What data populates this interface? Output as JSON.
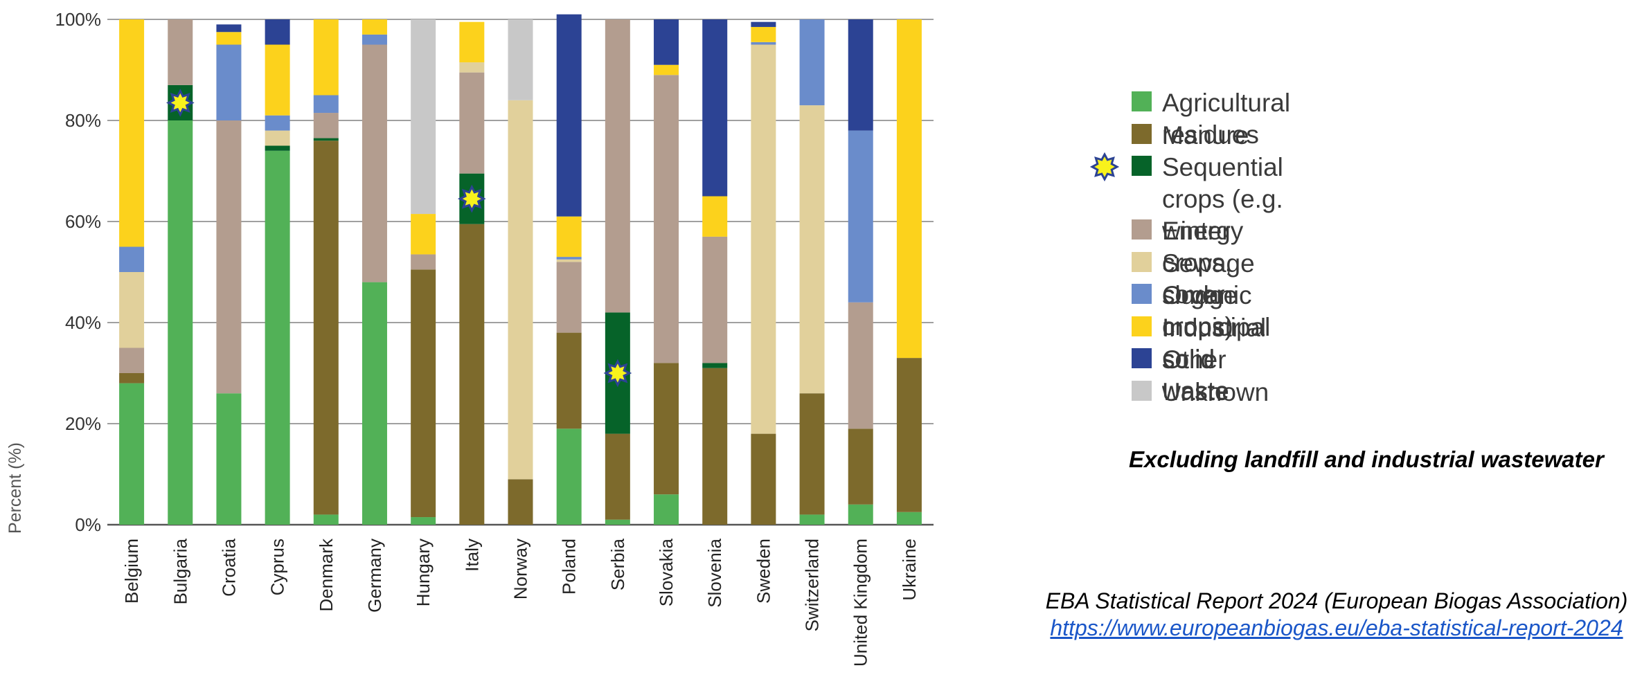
{
  "chart_data": {
    "type": "bar",
    "stacked": true,
    "title": "",
    "ylabel": "Percent (%)",
    "xlabel": "",
    "ylim": [
      0,
      100
    ],
    "yticks": [
      "0%",
      "20%",
      "40%",
      "60%",
      "80%",
      "100%"
    ],
    "grid": true,
    "legend_position": "right",
    "categories": [
      "Belgium",
      "Bulgaria",
      "Croatia",
      "Cyprus",
      "Denmark",
      "Germany",
      "Hungary",
      "Italy",
      "Norway",
      "Poland",
      "Serbia",
      "Slovakia",
      "Slovenia",
      "Sweden",
      "Switzerland",
      "United Kingdom",
      "Ukraine"
    ],
    "series": [
      {
        "name": "Agricultural residues",
        "color": "#52b157",
        "values": [
          28,
          80,
          26,
          74,
          2,
          48,
          1.5,
          0,
          0,
          19,
          1,
          6,
          0,
          0,
          2,
          4,
          2.5
        ]
      },
      {
        "name": "Manure",
        "color": "#7d6a2c",
        "values": [
          2,
          0,
          0,
          0,
          74,
          0,
          49,
          59.5,
          9,
          19,
          17,
          26,
          31,
          18,
          24,
          15,
          30.5
        ]
      },
      {
        "name": "Sequential crops (e.g.\nwinter crops, cover crops)",
        "color": "#066329",
        "values": [
          0,
          7,
          0,
          1,
          0.5,
          0,
          0,
          10,
          0,
          0,
          24,
          0,
          1,
          0,
          0,
          0,
          0
        ]
      },
      {
        "name": "Energy crops",
        "color": "#b39d8f",
        "values": [
          5,
          13,
          54,
          0,
          5,
          47,
          3,
          20,
          0,
          14,
          58,
          57,
          25,
          0,
          0,
          25,
          0
        ]
      },
      {
        "name": "Sewage sludge",
        "color": "#e1d09b",
        "values": [
          15,
          0,
          0,
          3,
          0,
          0,
          0,
          2,
          75,
          0.5,
          0,
          0,
          0,
          77,
          57,
          0,
          0
        ]
      },
      {
        "name": "Organic municipal solid waste",
        "color": "#6a8ccb",
        "values": [
          5,
          0,
          15,
          3,
          3.5,
          2,
          0,
          0,
          0,
          0.5,
          0,
          0,
          0,
          0.5,
          17,
          34,
          0
        ]
      },
      {
        "name": "Industrial solid waste",
        "color": "#fcd21c",
        "values": [
          45,
          0,
          2.5,
          14,
          15,
          3,
          8,
          8,
          0,
          8,
          0,
          2,
          8,
          3,
          0,
          0,
          67
        ]
      },
      {
        "name": "Other",
        "color": "#2c4394",
        "values": [
          0,
          0,
          1.5,
          5,
          0,
          0,
          0,
          0,
          0,
          40,
          0,
          9,
          35,
          1,
          0,
          22,
          0
        ]
      },
      {
        "name": "Unknown",
        "color": "#c8c8c8",
        "values": [
          0,
          0,
          0,
          0,
          0,
          0,
          38.5,
          0,
          16,
          0,
          0,
          0,
          0,
          0,
          0,
          0,
          0
        ]
      }
    ],
    "markers": [
      {
        "category": "Bulgaria",
        "series": "Sequential crops (e.g.\nwinter crops, cover crops)"
      },
      {
        "category": "Italy",
        "series": "Sequential crops (e.g.\nwinter crops, cover crops)"
      },
      {
        "category": "Serbia",
        "series": "Sequential crops (e.g.\nwinter crops, cover crops)"
      }
    ]
  },
  "legend": {
    "items": [
      {
        "label": "Agricultural residues",
        "color": "#52b157",
        "star": false
      },
      {
        "label": "Manure",
        "color": "#7d6a2c",
        "star": false
      },
      {
        "label": "Sequential crops (e.g.\nwinter crops, cover crops)",
        "color": "#066329",
        "star": true
      },
      {
        "label": "Energy crops",
        "color": "#b39d8f",
        "star": false
      },
      {
        "label": "Sewage sludge",
        "color": "#e1d09b",
        "star": false
      },
      {
        "label": "Organic municipal solid waste",
        "color": "#6a8ccb",
        "star": false
      },
      {
        "label": "Industrial solid waste",
        "color": "#fcd21c",
        "star": false
      },
      {
        "label": "Other",
        "color": "#2c4394",
        "star": false
      },
      {
        "label": "Unknown",
        "color": "#c8c8c8",
        "star": false
      }
    ]
  },
  "note": "Excluding landfill and industrial wastewater",
  "source": {
    "text": "EBA Statistical Report 2024 (European Biogas Association)",
    "url": "https://www.europeanbiogas.eu/eba-statistical-report-2024"
  },
  "colors": {
    "star_fill": "#f8f21c",
    "star_stroke": "#2c4394",
    "grid": "#808080",
    "axis": "#555555"
  }
}
